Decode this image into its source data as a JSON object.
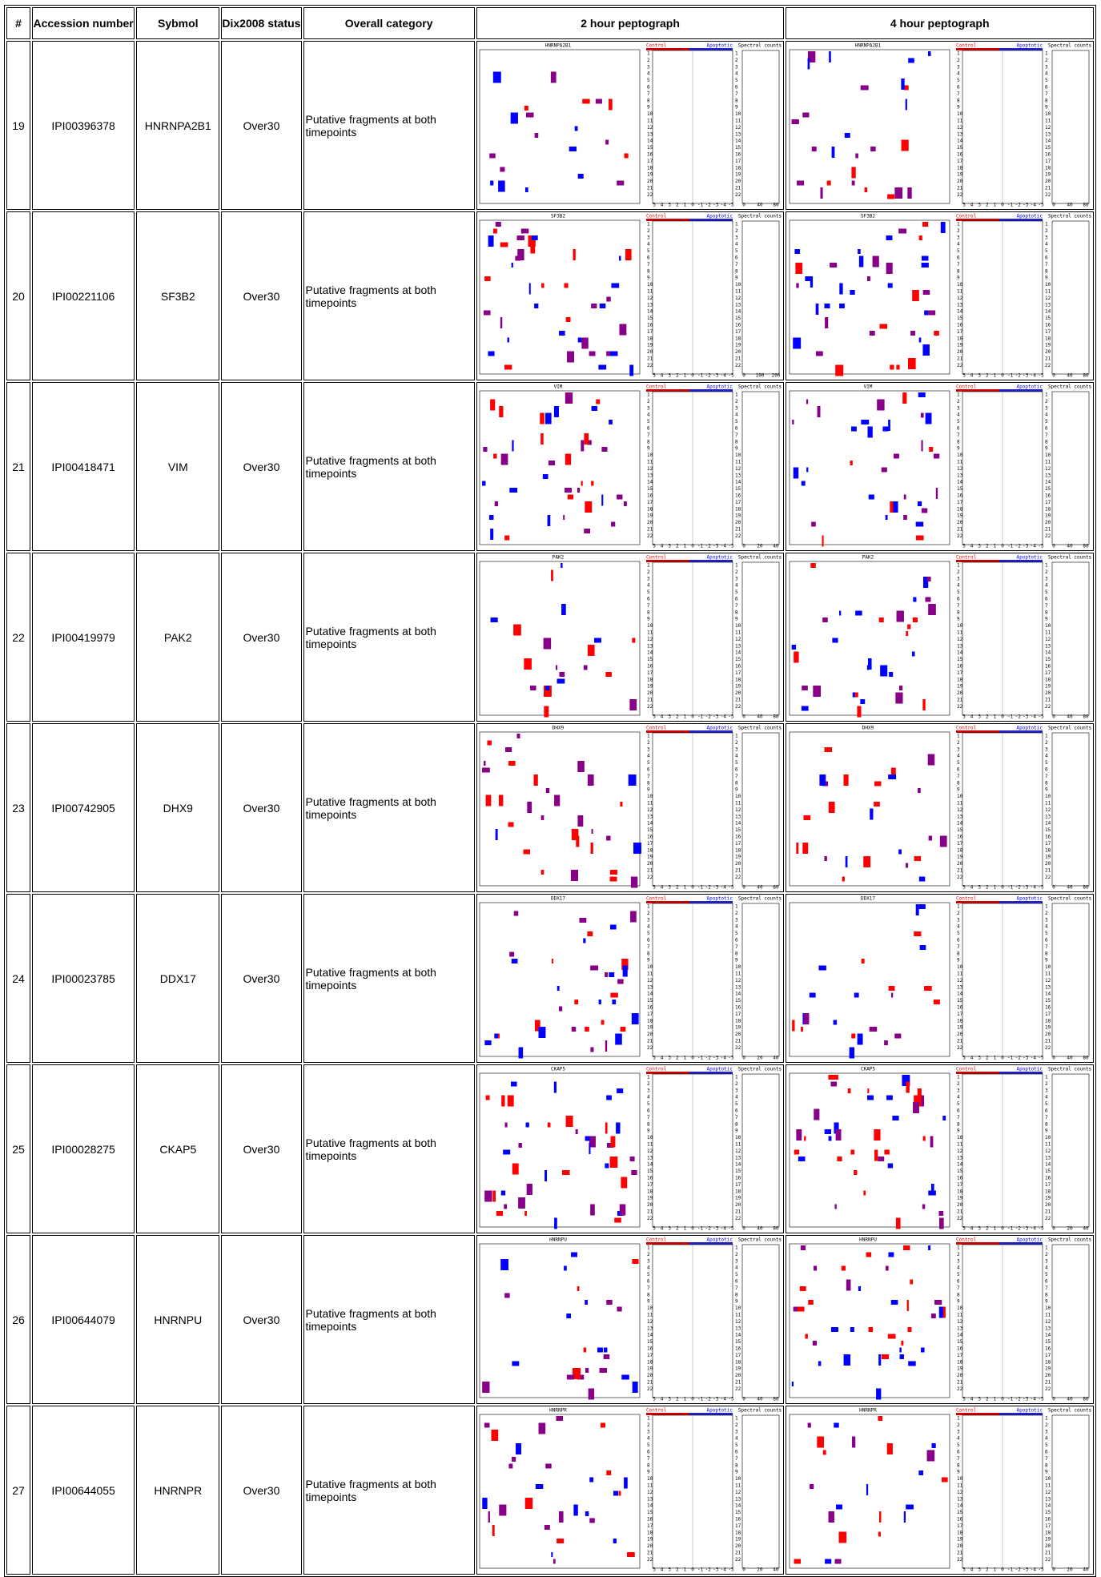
{
  "header": {
    "columns": [
      "#",
      "Accession number",
      "Sybmol",
      "Dix2008 status",
      "Overall category",
      "2 hour peptograph",
      "4 hour peptograph"
    ]
  },
  "peptograph_labels": {
    "control": "Control",
    "apoptotic": "Apoptotic",
    "counts": "Spectral counts",
    "lanes": [
      1,
      2,
      3,
      4,
      5,
      6,
      7,
      8,
      9,
      10,
      11,
      12,
      13,
      14,
      15,
      16,
      17,
      18,
      19,
      20,
      21,
      22
    ],
    "fold_ticks": [
      5,
      4,
      3,
      2,
      1,
      0,
      -1,
      -2,
      -3,
      -4,
      -5
    ]
  },
  "rows": [
    {
      "num": 19,
      "accession": "IPI00396378",
      "symbol": "HNRNPA2B1",
      "status": "Over30",
      "category": "Putative fragments at both timepoints",
      "peptograph_2h": {
        "title": "HNRNPA2B1",
        "count_ticks": [
          0,
          40,
          80
        ]
      },
      "peptograph_4h": {
        "title": "HNRNPA2B1",
        "count_ticks": [
          0,
          40,
          80
        ]
      }
    },
    {
      "num": 20,
      "accession": "IPI00221106",
      "symbol": "SF3B2",
      "status": "Over30",
      "category": "Putative fragments at both timepoints",
      "peptograph_2h": {
        "title": "SF3B2",
        "count_ticks": [
          0,
          100,
          200
        ]
      },
      "peptograph_4h": {
        "title": "SF3B2",
        "count_ticks": [
          0,
          40,
          80
        ]
      }
    },
    {
      "num": 21,
      "accession": "IPI00418471",
      "symbol": "VIM",
      "status": "Over30",
      "category": "Putative fragments at both timepoints",
      "peptograph_2h": {
        "title": "VIM",
        "count_ticks": [
          0,
          20,
          40
        ]
      },
      "peptograph_4h": {
        "title": "VIM",
        "count_ticks": [
          0,
          40,
          80
        ]
      }
    },
    {
      "num": 22,
      "accession": "IPI00419979",
      "symbol": "PAK2",
      "status": "Over30",
      "category": "Putative fragments at both timepoints",
      "peptograph_2h": {
        "title": "PAK2",
        "count_ticks": [
          0,
          40,
          80
        ]
      },
      "peptograph_4h": {
        "title": "PAK2",
        "count_ticks": [
          0,
          40,
          80
        ]
      }
    },
    {
      "num": 23,
      "accession": "IPI00742905",
      "symbol": "DHX9",
      "status": "Over30",
      "category": "Putative fragments at both timepoints",
      "peptograph_2h": {
        "title": "DHX9",
        "count_ticks": [
          0,
          40,
          80
        ]
      },
      "peptograph_4h": {
        "title": "DHX9",
        "count_ticks": [
          0,
          40,
          80
        ]
      }
    },
    {
      "num": 24,
      "accession": "IPI00023785",
      "symbol": "DDX17",
      "status": "Over30",
      "category": "Putative fragments at both timepoints",
      "peptograph_2h": {
        "title": "DDX17",
        "count_ticks": [
          0,
          20,
          40
        ]
      },
      "peptograph_4h": {
        "title": "DDX17",
        "count_ticks": [
          0,
          40,
          80
        ]
      }
    },
    {
      "num": 25,
      "accession": "IPI00028275",
      "symbol": "CKAP5",
      "status": "Over30",
      "category": "Putative fragments at both timepoints",
      "peptograph_2h": {
        "title": "CKAP5",
        "count_ticks": [
          0,
          40,
          80
        ]
      },
      "peptograph_4h": {
        "title": "CKAP5",
        "count_ticks": [
          0,
          20,
          40
        ]
      }
    },
    {
      "num": 26,
      "accession": "IPI00644079",
      "symbol": "HNRNPU",
      "status": "Over30",
      "category": "Putative fragments at both timepoints",
      "peptograph_2h": {
        "title": "HNRNPU",
        "count_ticks": [
          0,
          40,
          80
        ]
      },
      "peptograph_4h": {
        "title": "HNRNPU",
        "count_ticks": [
          0,
          40,
          80
        ]
      }
    },
    {
      "num": 27,
      "accession": "IPI00644055",
      "symbol": "HNRNPR",
      "status": "Over30",
      "category": "Putative fragments at both timepoints",
      "peptograph_2h": {
        "title": "HNRNPR",
        "count_ticks": [
          0,
          20,
          40
        ]
      },
      "peptograph_4h": {
        "title": "HNRNPR",
        "count_ticks": [
          0,
          20,
          40
        ]
      }
    }
  ]
}
